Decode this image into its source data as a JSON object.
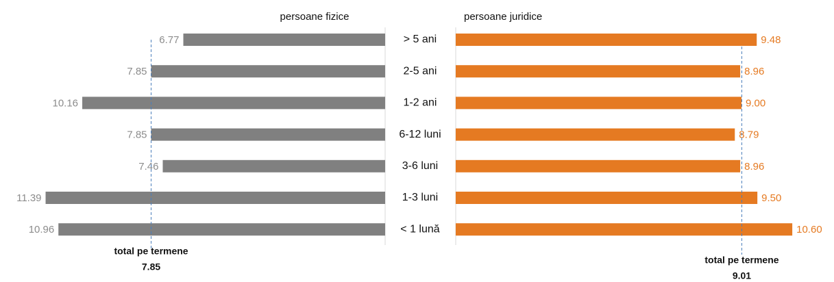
{
  "chart_data": [
    {
      "type": "bar",
      "orientation": "horizontal",
      "direction": "left",
      "title": "persoane fizice",
      "categories": [
        "> 5 ani",
        "2-5 ani",
        "1-2 ani",
        "6-12 luni",
        "3-6 luni",
        "1-3 luni",
        "< 1 lună"
      ],
      "values": [
        6.77,
        7.85,
        10.16,
        7.85,
        7.46,
        11.39,
        10.96
      ],
      "value_labels": [
        "6.77",
        "7.85",
        "10.16",
        "7.85",
        "7.46",
        "11.39",
        "10.96"
      ],
      "color": "#808080",
      "label_color": "#8c8c8c",
      "xlim": [
        0,
        12
      ],
      "reference": {
        "label": "total pe termene",
        "value": 7.85
      }
    },
    {
      "type": "bar",
      "orientation": "horizontal",
      "direction": "right",
      "title": "persoane juridice",
      "values": [
        9.48,
        8.96,
        9.0,
        8.79,
        8.96,
        9.5,
        10.6
      ],
      "value_labels": [
        "9.48",
        "8.96",
        "9.00",
        "8.79",
        "8.96",
        "9.50",
        "10.60"
      ],
      "color": "#e57a22",
      "label_color": "#e57a22",
      "xlim": [
        0,
        12
      ],
      "reference": {
        "label": "total pe termene",
        "value": 9.01
      }
    }
  ]
}
